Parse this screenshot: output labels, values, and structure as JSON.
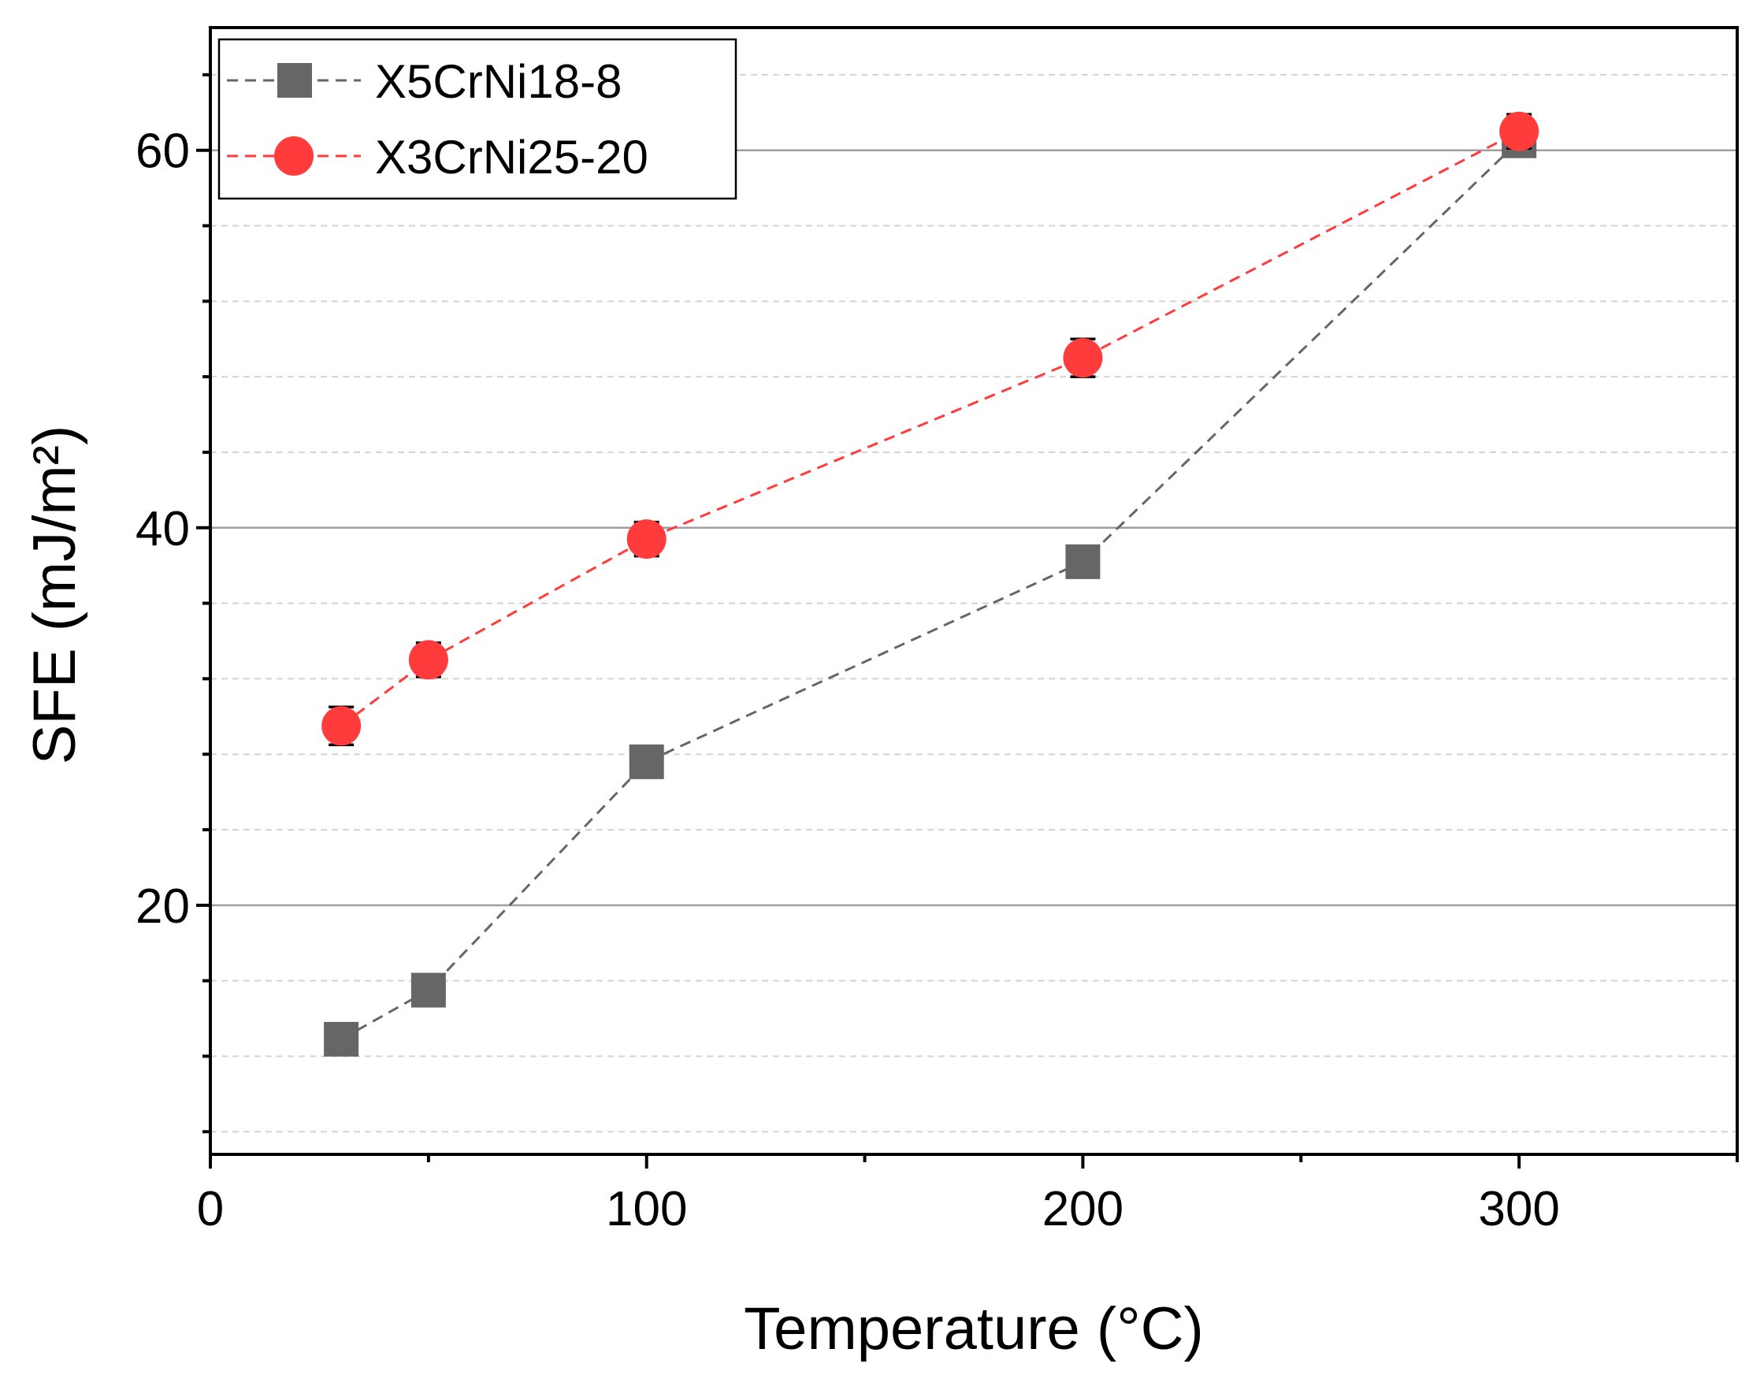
{
  "colors": {
    "series1": "#666666",
    "series2": "#ff3b3b",
    "major_grid": "#9e9e9e",
    "minor_grid": "#d4d4d4",
    "axis": "#000000"
  },
  "chart_data": {
    "type": "scatter",
    "title": "",
    "xlabel": "Temperature (°C)",
    "ylabel": "SFE (mJ/m²)",
    "xlim": [
      0,
      350
    ],
    "ylim": [
      6.8,
      66.5
    ],
    "xticks": [
      0,
      100,
      200,
      300
    ],
    "xtick_labels": [
      "0",
      "100",
      "200",
      "300"
    ],
    "yticks": [
      20,
      40,
      60
    ],
    "ytick_labels": [
      "20",
      "40",
      "60"
    ],
    "grid": "horizontal major solid, minor dashed",
    "legend_position": "top-left",
    "series": [
      {
        "name": "X5CrNi18-8",
        "marker": "square",
        "line": "dashed",
        "x": [
          30,
          50,
          100,
          200,
          300
        ],
        "y": [
          12.9,
          15.5,
          27.6,
          38.2,
          60.5
        ],
        "err": [
          0.7,
          0.7,
          0.8,
          0.8,
          0.6
        ]
      },
      {
        "name": "X3CrNi25-20",
        "marker": "circle",
        "line": "dashed",
        "x": [
          30,
          50,
          100,
          200,
          300
        ],
        "y": [
          29.5,
          33.0,
          39.4,
          49.0,
          61.0
        ],
        "err": [
          1.0,
          0.9,
          0.9,
          1.0,
          0.9
        ]
      }
    ]
  }
}
